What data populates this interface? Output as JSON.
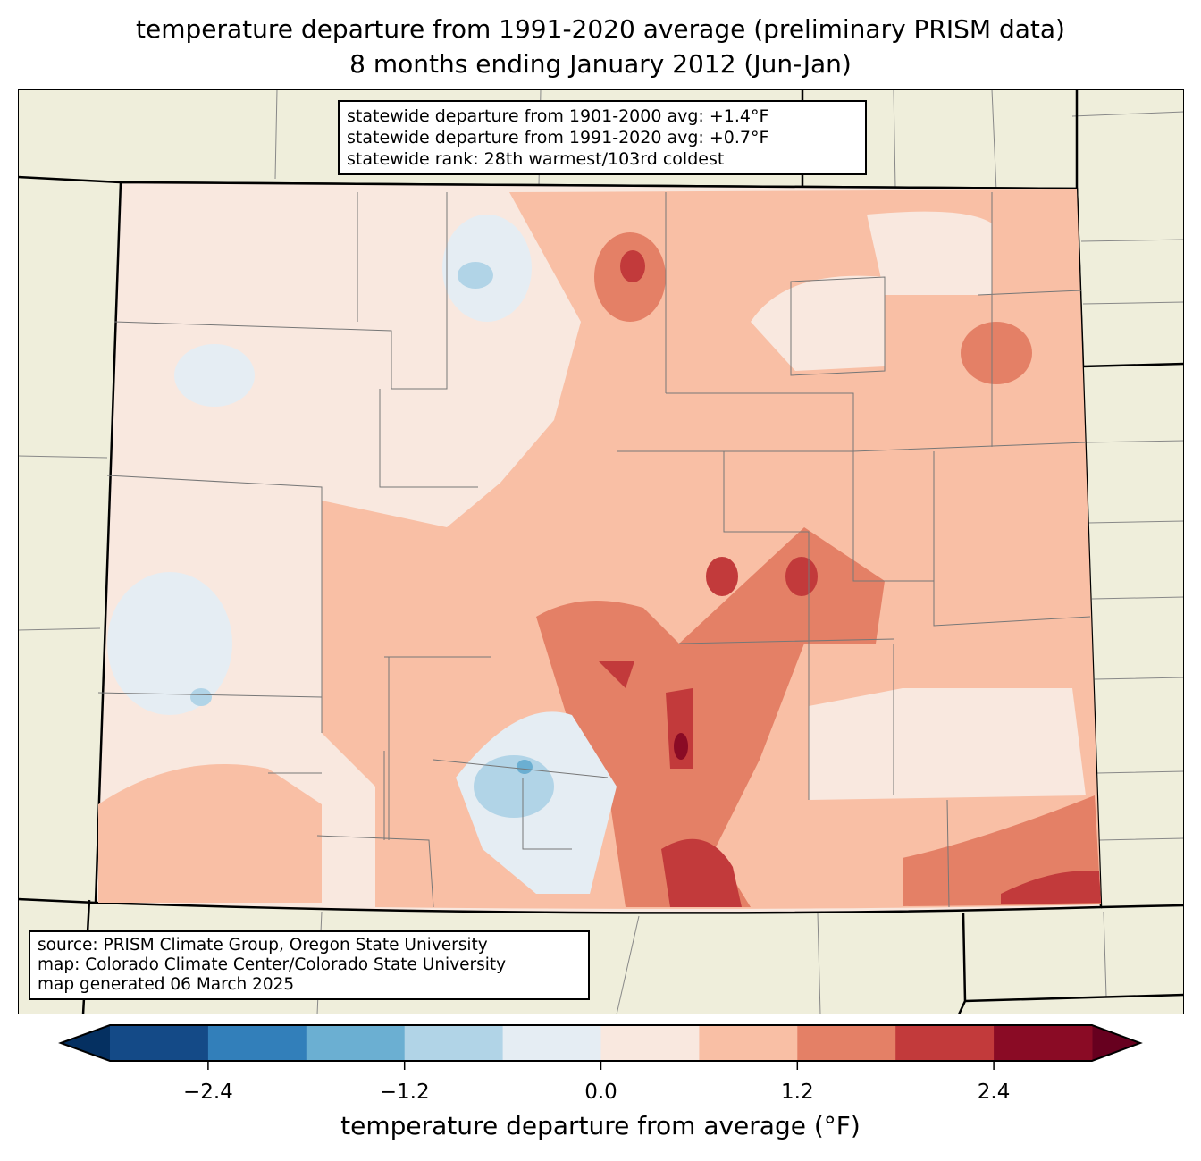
{
  "title": {
    "line1": "temperature departure from 1991-2020 average (preliminary PRISM data)",
    "line2": "8 months ending January 2012 (Jun-Jan)"
  },
  "info_box": {
    "line1": "statewide departure from 1901-2000 avg: +1.4°F",
    "line2": "statewide departure from 1991-2020 avg: +0.7°F",
    "line3": "statewide rank: 28th warmest/103rd coldest"
  },
  "source_box": {
    "line1": "source: PRISM Climate Group, Oregon State University",
    "line2": "map: Colorado Climate Center/Colorado State University",
    "line3": "map generated 06 March 2025"
  },
  "colorbar": {
    "label": "temperature departure from average (°F)",
    "bounds": [
      -3.0,
      -2.4,
      -1.8,
      -1.2,
      -0.6,
      0.0,
      0.6,
      1.2,
      1.8,
      2.4,
      3.0
    ],
    "colors": [
      "#144a87",
      "#327fba",
      "#6bafd2",
      "#b1d4e7",
      "#e5edf3",
      "#f9e8df",
      "#f9bfa5",
      "#e48066",
      "#c23a3b",
      "#8a0b25"
    ],
    "under_color": "#053061",
    "over_color": "#67001f",
    "ticks": [
      "−2.4",
      "−1.2",
      "0.0",
      "1.2",
      "2.4"
    ],
    "tick_values": [
      -2.4,
      -1.2,
      0.0,
      1.2,
      2.4
    ]
  },
  "map_colors": {
    "background": "#efeedb",
    "base": "#f9e8df"
  }
}
